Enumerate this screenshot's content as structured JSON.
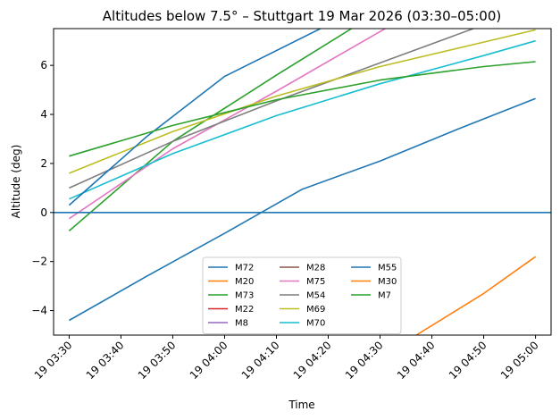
{
  "chart_data": {
    "type": "line",
    "title": "Altitudes below 7.5° – Stuttgart 19 Mar 2026 (03:30–05:00)",
    "xlabel": "Time",
    "ylabel": "Altitude (deg)",
    "xlim": [
      -3,
      93
    ],
    "ylim": [
      -5,
      7.5
    ],
    "x_ticks": [
      {
        "t": 0,
        "label": "19 03:30"
      },
      {
        "t": 10,
        "label": "19 03:40"
      },
      {
        "t": 20,
        "label": "19 03:50"
      },
      {
        "t": 30,
        "label": "19 04:00"
      },
      {
        "t": 40,
        "label": "19 04:10"
      },
      {
        "t": 50,
        "label": "19 04:20"
      },
      {
        "t": 60,
        "label": "19 04:30"
      },
      {
        "t": 70,
        "label": "19 04:40"
      },
      {
        "t": 80,
        "label": "19 04:50"
      },
      {
        "t": 90,
        "label": "19 05:00"
      }
    ],
    "y_ticks": [
      -4,
      -2,
      0,
      2,
      4,
      6
    ],
    "horizon_line": {
      "y": 0,
      "color": "#1f77b4"
    },
    "legend_position": "lower center",
    "legend_columns": 3,
    "series": [
      {
        "name": "M72",
        "color": "#1f77b4",
        "x": [
          0,
          15,
          30,
          45,
          60,
          75,
          90
        ],
        "y": [
          -4.4,
          -2.6,
          -0.85,
          0.95,
          2.1,
          3.4,
          4.65
        ]
      },
      {
        "name": "M20",
        "color": "#ff7f0e",
        "x": [
          67,
          80,
          90
        ],
        "y": [
          -5,
          -3.3,
          -1.8
        ]
      },
      {
        "name": "M73",
        "color": "#2ca02c",
        "x": [
          0,
          20,
          40,
          54.5
        ],
        "y": [
          -0.75,
          2.9,
          5.6,
          7.5
        ]
      },
      {
        "name": "M22",
        "color": "#d62728",
        "x": [],
        "y": []
      },
      {
        "name": "M8",
        "color": "#9467bd",
        "x": [],
        "y": []
      },
      {
        "name": "M28",
        "color": "#8c564b",
        "x": [],
        "y": []
      },
      {
        "name": "M75",
        "color": "#e377c2",
        "x": [
          0,
          20,
          40,
          61
        ],
        "y": [
          -0.25,
          2.6,
          4.95,
          7.5
        ]
      },
      {
        "name": "M54",
        "color": "#7f7f7f",
        "x": [
          0,
          20,
          40,
          60,
          78
        ],
        "y": [
          1.0,
          2.9,
          4.55,
          6.1,
          7.5
        ]
      },
      {
        "name": "M69",
        "color": "#bcbd22",
        "x": [
          0,
          20,
          40,
          60,
          80,
          90
        ],
        "y": [
          1.6,
          3.3,
          4.75,
          5.95,
          6.95,
          7.45
        ]
      },
      {
        "name": "M70",
        "color": "#17becf",
        "x": [
          0,
          20,
          40,
          60,
          80,
          90
        ],
        "y": [
          0.55,
          2.4,
          3.95,
          5.25,
          6.4,
          7.0
        ]
      },
      {
        "name": "M55",
        "color": "#1f77b4",
        "x": [
          0,
          15,
          30,
          48.5
        ],
        "y": [
          0.3,
          3.1,
          5.55,
          7.5
        ]
      },
      {
        "name": "M30",
        "color": "#ff7f0e",
        "x": [],
        "y": []
      },
      {
        "name": "M7",
        "color": "#2ca02c",
        "x": [
          0,
          20,
          40,
          60,
          80,
          90
        ],
        "y": [
          2.3,
          3.55,
          4.6,
          5.4,
          5.95,
          6.15
        ]
      }
    ]
  }
}
